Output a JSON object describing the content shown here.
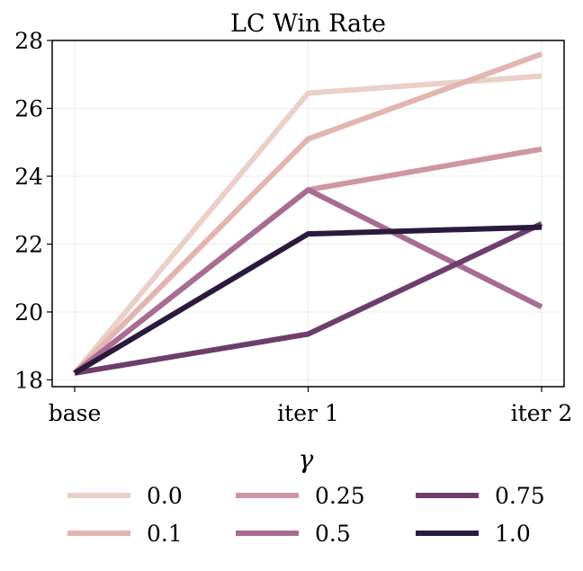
{
  "chart_data": {
    "type": "line",
    "title": "LC Win Rate",
    "xlabel": "",
    "ylabel": "",
    "categories": [
      "base",
      "iter 1",
      "iter 2"
    ],
    "ylim": [
      17.8,
      28.0
    ],
    "yticks": [
      18,
      20,
      22,
      24,
      26,
      28
    ],
    "grid": true,
    "legend": {
      "title": "γ",
      "placement": "bottom",
      "columns": 3
    },
    "series": [
      {
        "name": "0.0",
        "color": "#ebd0c8",
        "values": [
          18.2,
          26.45,
          26.95
        ]
      },
      {
        "name": "0.1",
        "color": "#e3b5b1",
        "values": [
          18.2,
          25.1,
          27.6
        ]
      },
      {
        "name": "0.25",
        "color": "#cf96a2",
        "values": [
          18.2,
          23.6,
          24.8
        ]
      },
      {
        "name": "0.5",
        "color": "#a86c92",
        "values": [
          18.2,
          23.6,
          20.15
        ]
      },
      {
        "name": "0.75",
        "color": "#6d3e6d",
        "values": [
          18.2,
          19.35,
          22.6
        ]
      },
      {
        "name": "1.0",
        "color": "#2b1a3d",
        "values": [
          18.2,
          22.3,
          22.5
        ]
      }
    ]
  }
}
